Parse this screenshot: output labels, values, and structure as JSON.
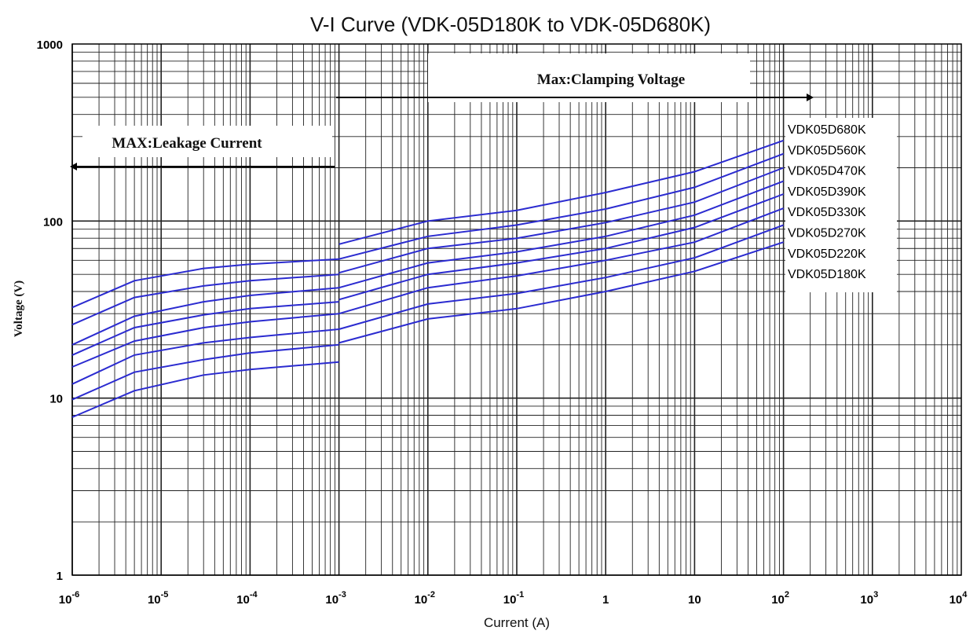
{
  "chart_data": {
    "type": "line",
    "title": "V-I Curve (VDK-05D180K to VDK-05D680K)",
    "xlabel": "Current (A)",
    "ylabel": "Voltage (V)",
    "x_scale": "log",
    "y_scale": "log",
    "xlim": [
      1e-06,
      10000
    ],
    "ylim": [
      1,
      1000
    ],
    "grid": true,
    "x_ticks": [
      {
        "base": "10",
        "exp": "-6"
      },
      {
        "base": "10",
        "exp": "-5"
      },
      {
        "base": "10",
        "exp": "-4"
      },
      {
        "base": "10",
        "exp": "-3"
      },
      {
        "base": "10",
        "exp": "-2"
      },
      {
        "base": "10",
        "exp": "-1"
      },
      {
        "base": "1",
        "exp": ""
      },
      {
        "base": "10",
        "exp": ""
      },
      {
        "base": "10",
        "exp": "2"
      },
      {
        "base": "10",
        "exp": "3"
      },
      {
        "base": "10",
        "exp": "4"
      }
    ],
    "y_ticks": [
      "1",
      "10",
      "100",
      "1000"
    ],
    "annotations": {
      "leakage": "MAX:Leakage Current",
      "clamping": "Max:Clamping Voltage"
    },
    "line_color": "#2b2bd0",
    "series": [
      {
        "name": "VDK05D180K",
        "leakage": [
          [
            1e-06,
            7.8
          ],
          [
            5e-06,
            11
          ],
          [
            3e-05,
            13.5
          ],
          [
            0.0001,
            14.5
          ],
          [
            0.001,
            16
          ]
        ],
        "clamping": [
          [
            0.001,
            20.5
          ],
          [
            0.01,
            28
          ],
          [
            0.1,
            32
          ],
          [
            1,
            40
          ],
          [
            10,
            52
          ],
          [
            100,
            76
          ]
        ]
      },
      {
        "name": "VDK05D220K",
        "leakage": [
          [
            1e-06,
            9.8
          ],
          [
            5e-06,
            14
          ],
          [
            3e-05,
            16.5
          ],
          [
            0.0001,
            18
          ],
          [
            0.001,
            20
          ]
        ],
        "clamping": [
          [
            0.001,
            24.5
          ],
          [
            0.01,
            34
          ],
          [
            0.1,
            39
          ],
          [
            1,
            48
          ],
          [
            10,
            62
          ],
          [
            100,
            95
          ]
        ]
      },
      {
        "name": "VDK05D270K",
        "leakage": [
          [
            1e-06,
            12
          ],
          [
            5e-06,
            17.5
          ],
          [
            3e-05,
            20.5
          ],
          [
            0.0001,
            22
          ],
          [
            0.001,
            24.5
          ]
        ],
        "clamping": [
          [
            0.001,
            30
          ],
          [
            0.01,
            42
          ],
          [
            0.1,
            49
          ],
          [
            1,
            60
          ],
          [
            10,
            76
          ],
          [
            100,
            118
          ]
        ]
      },
      {
        "name": "VDK05D330K",
        "leakage": [
          [
            1e-06,
            15
          ],
          [
            5e-06,
            21
          ],
          [
            3e-05,
            25
          ],
          [
            0.0001,
            27
          ],
          [
            0.001,
            30
          ]
        ],
        "clamping": [
          [
            0.001,
            36
          ],
          [
            0.01,
            50
          ],
          [
            0.1,
            58
          ],
          [
            1,
            70
          ],
          [
            10,
            92
          ],
          [
            100,
            142
          ]
        ]
      },
      {
        "name": "VDK05D390K",
        "leakage": [
          [
            1e-06,
            17.5
          ],
          [
            5e-06,
            25
          ],
          [
            3e-05,
            29.5
          ],
          [
            0.0001,
            32
          ],
          [
            0.001,
            35
          ]
        ],
        "clamping": [
          [
            0.001,
            42
          ],
          [
            0.01,
            58
          ],
          [
            0.1,
            67
          ],
          [
            1,
            82
          ],
          [
            10,
            108
          ],
          [
            100,
            168
          ]
        ]
      },
      {
        "name": "VDK05D470K",
        "leakage": [
          [
            1e-06,
            20
          ],
          [
            5e-06,
            29
          ],
          [
            3e-05,
            35
          ],
          [
            0.0001,
            38
          ],
          [
            0.001,
            42
          ]
        ],
        "clamping": [
          [
            0.001,
            51
          ],
          [
            0.01,
            70
          ],
          [
            0.1,
            80
          ],
          [
            1,
            98
          ],
          [
            10,
            128
          ],
          [
            100,
            200
          ]
        ]
      },
      {
        "name": "VDK05D560K",
        "leakage": [
          [
            1e-06,
            26
          ],
          [
            5e-06,
            37
          ],
          [
            3e-05,
            43
          ],
          [
            0.0001,
            46
          ],
          [
            0.001,
            50
          ]
        ],
        "clamping": [
          [
            0.001,
            61
          ],
          [
            0.01,
            82
          ],
          [
            0.1,
            95
          ],
          [
            1,
            117
          ],
          [
            10,
            155
          ],
          [
            100,
            240
          ]
        ]
      },
      {
        "name": "VDK05D680K",
        "leakage": [
          [
            1e-06,
            32.5
          ],
          [
            5e-06,
            46
          ],
          [
            3e-05,
            54
          ],
          [
            0.0001,
            57
          ],
          [
            0.001,
            61
          ]
        ],
        "clamping": [
          [
            0.001,
            74
          ],
          [
            0.01,
            100
          ],
          [
            0.1,
            115
          ],
          [
            1,
            145
          ],
          [
            10,
            190
          ],
          [
            100,
            285
          ]
        ]
      }
    ]
  }
}
